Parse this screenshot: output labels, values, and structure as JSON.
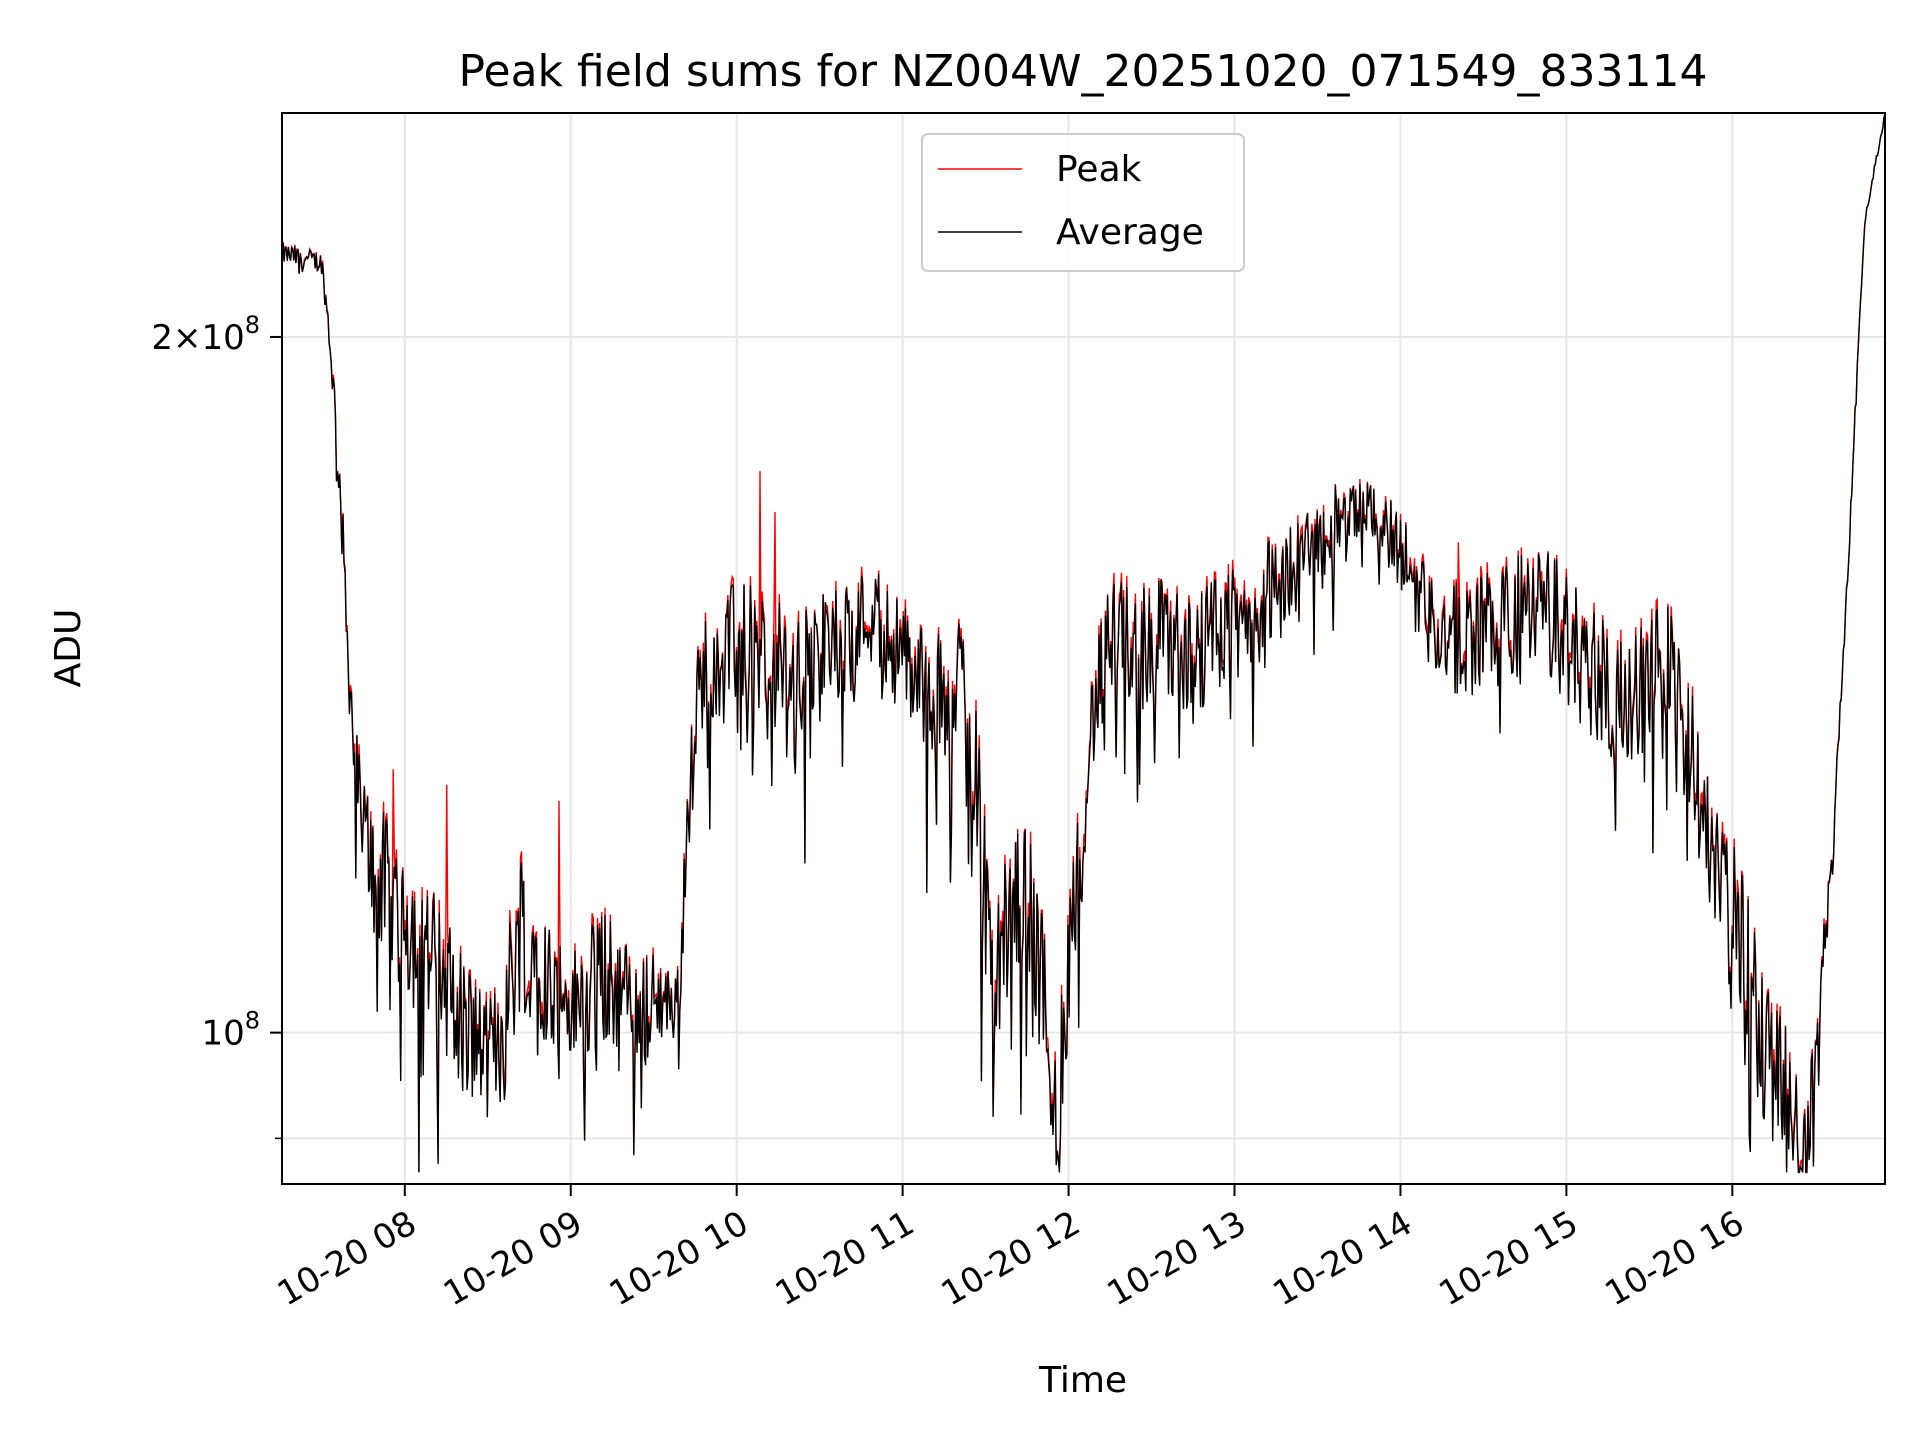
{
  "chart_data": {
    "type": "line",
    "title": "Peak field sums for NZ004W_20251020_071549_833114",
    "xlabel": "Time",
    "ylabel": "ADU",
    "yscale": "log",
    "ylim": [
      86000000,
      250000000
    ],
    "xlim_hours": [
      7.26,
      16.92
    ],
    "x_ticks": [
      {
        "h": 8,
        "label": "10-20 08"
      },
      {
        "h": 9,
        "label": "10-20 09"
      },
      {
        "h": 10,
        "label": "10-20 10"
      },
      {
        "h": 11,
        "label": "10-20 11"
      },
      {
        "h": 12,
        "label": "10-20 12"
      },
      {
        "h": 13,
        "label": "10-20 13"
      },
      {
        "h": 14,
        "label": "10-20 14"
      },
      {
        "h": 15,
        "label": "10-20 15"
      },
      {
        "h": 16,
        "label": "10-20 16"
      }
    ],
    "y_ticks": [
      {
        "value": 200000000,
        "label_mant": "2×10",
        "label_exp": "8"
      },
      {
        "value": 100000000,
        "label_mant": "10",
        "label_exp": "8"
      }
    ],
    "y_minor_ticks": [
      90000000
    ],
    "legend": {
      "position": "upper center",
      "entries": [
        "Peak",
        "Average"
      ]
    },
    "series": [
      {
        "name": "Peak",
        "color": "#ff0000"
      },
      {
        "name": "Average",
        "color": "#000000"
      }
    ],
    "average_profile": {
      "x_hours": [
        7.26,
        7.5,
        7.55,
        7.6,
        7.65,
        7.7,
        7.75,
        7.82,
        8.0,
        8.2,
        8.35,
        8.5,
        8.6,
        8.7,
        8.85,
        9.0,
        9.2,
        9.4,
        9.5,
        9.65,
        9.75,
        9.8,
        9.85,
        10.0,
        10.2,
        10.35,
        10.5,
        10.7,
        10.8,
        11.0,
        11.2,
        11.35,
        11.45,
        11.5,
        11.55,
        11.65,
        11.75,
        11.85,
        11.93,
        11.97,
        12.05,
        12.15,
        12.25,
        12.5,
        12.75,
        13.0,
        13.3,
        13.6,
        13.8,
        13.95,
        14.1,
        14.3,
        14.6,
        14.9,
        15.1,
        15.3,
        15.45,
        15.6,
        15.75,
        15.9,
        16.0,
        16.15,
        16.3,
        16.45,
        16.52,
        16.6,
        16.7,
        16.8,
        16.92
      ],
      "avg_values_millions": [
        218,
        216,
        200,
        178,
        152,
        132,
        124,
        120,
        115,
        109,
        104,
        99,
        103,
        115,
        108,
        104,
        108,
        104,
        105,
        104,
        140,
        146,
        148,
        150,
        148,
        144,
        149,
        151,
        155,
        148,
        142,
        146,
        134,
        118,
        107,
        116,
        118,
        106,
        94,
        102,
        120,
        140,
        150,
        151,
        150,
        152,
        160,
        168,
        170,
        166,
        158,
        150,
        154,
        155,
        148,
        142,
        144,
        148,
        135,
        120,
        116,
        105,
        98,
        89,
        105,
        118,
        160,
        225,
        250
      ],
      "noise_millions": [
        3,
        3,
        5,
        6,
        8,
        9,
        10,
        11,
        11,
        10,
        9,
        7,
        10,
        12,
        9,
        8,
        9,
        7,
        6,
        5,
        9,
        10,
        11,
        12,
        13,
        12,
        11,
        10,
        10,
        11,
        12,
        12,
        14,
        12,
        9,
        10,
        11,
        10,
        7,
        9,
        10,
        10,
        12,
        12,
        12,
        12,
        10,
        8,
        6,
        8,
        10,
        11,
        12,
        13,
        13,
        12,
        12,
        12,
        12,
        10,
        10,
        9,
        8,
        5,
        5,
        3,
        2,
        1,
        1
      ],
      "peak_spikes": [
        {
          "h": 10.14,
          "peak_millions": 175
        },
        {
          "h": 10.23,
          "peak_millions": 168
        },
        {
          "h": 8.25,
          "peak_millions": 128
        },
        {
          "h": 7.93,
          "peak_millions": 130
        },
        {
          "h": 14.35,
          "peak_millions": 163
        },
        {
          "h": 8.93,
          "peak_millions": 126
        }
      ]
    }
  }
}
